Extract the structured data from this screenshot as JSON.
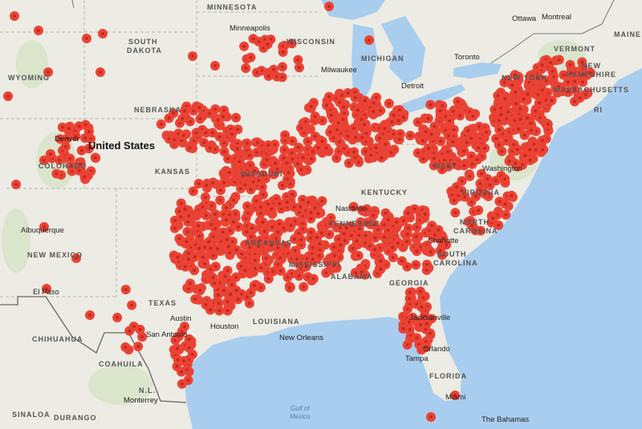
{
  "map": {
    "colors": {
      "land": "#ecebe4",
      "water": "#a9cdee",
      "marker": "#ea4335",
      "marker_center": "#c5281d",
      "border": "#bdbdb0"
    },
    "marker_icon": "red-circle-marker",
    "country_label": "United States",
    "state_labels": [
      "MINNESOTA",
      "SOUTH",
      "DAKOTA",
      "WYOMING",
      "NEBRASKA",
      "COLORADO",
      "KANSAS",
      "MISSOURI",
      "WISCONSIN",
      "MICHIGAN",
      "NEW MEXICO",
      "TEXAS",
      "ARKANSAS",
      "MISSISSIPPI",
      "ALABAMA",
      "GEORGIA",
      "LOUISIANA",
      "TENNESSEE",
      "KENTUCKY",
      "WEST",
      "VIRGINIA",
      "NORTH",
      "CAROLINA",
      "SOUTH",
      "CAROLINA",
      "FLORIDA",
      "VERMONT",
      "NEW",
      "HAMPSHIRE",
      "MASSACHUSETTS",
      "RI",
      "MAINE",
      "NEW YORK",
      "CHIHUAHUA",
      "COAHUILA",
      "N.L.",
      "SINALOA",
      "DURANGO"
    ],
    "city_labels": [
      "Minneapolis",
      "Milwaukee",
      "Detroit",
      "Toronto",
      "Ottawa",
      "Montreal",
      "Washington",
      "Nashville",
      "Charlotte",
      "Jacksonville",
      "Orlando",
      "Tampa",
      "Miami",
      "New Orleans",
      "Houston",
      "Austin",
      "San Antonio",
      "Albuquerque",
      "El Paso",
      "Denver",
      "Monterrey",
      "The Bahamas"
    ],
    "sea_label_1": "Gulf of",
    "sea_label_2": "Mexico"
  }
}
